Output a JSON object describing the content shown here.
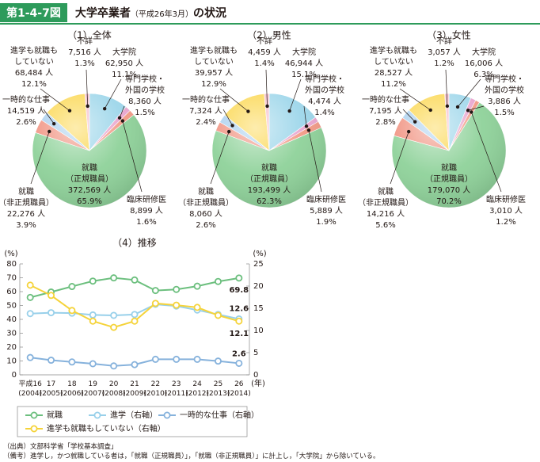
{
  "header": {
    "figure_no": "第1-4-7図",
    "title_main": "大学卒業者",
    "title_sub": "（平成26年3月）",
    "title_end": "の状況"
  },
  "notes": [
    "（出典）文部科学省「学校基本調査」",
    "（備考）進学し，かつ就職している者は，「就職（正規職員）」，「就職（非正規職員）」に計上し，「大学院」から除いている。"
  ],
  "chart_data": [
    {
      "type": "pie",
      "title": "（1）全体",
      "categories": [
        "大学院",
        "専門学校・\n外国の学校",
        "臨床研修医",
        "就職\n（正規職員）",
        "就職\n（非正規職員）",
        "一時的な仕事",
        "進学も就職も\nしていない",
        "不詳"
      ],
      "values": [
        11.1,
        1.5,
        1.6,
        65.9,
        3.9,
        2.6,
        12.1,
        1.3
      ],
      "value_labels": [
        "11.1%",
        "1.5%",
        "1.6%",
        "65.9%",
        "3.9%",
        "2.6%",
        "12.1%",
        "1.3%"
      ],
      "counts": [
        62950,
        8360,
        8899,
        372569,
        22276,
        14519,
        68484,
        7516
      ],
      "count_labels": [
        "62,950 人",
        "8,360 人",
        "8,899 人",
        "372,569 人",
        "22,276 人",
        "14,519 人",
        "68,484 人",
        "7,516 人"
      ],
      "colors": [
        "#9dd6ea",
        "#e9a6cf",
        "#f29a86",
        "#8fd29a",
        "#f0907e",
        "#a9cfee",
        "#fbd64c",
        "#f5bccb"
      ]
    },
    {
      "type": "pie",
      "title": "（2）男性",
      "categories": [
        "大学院",
        "専門学校・\n外国の学校",
        "臨床研修医",
        "就職\n（正規職員）",
        "就職\n（非正規職員）",
        "一時的な仕事",
        "進学も就職も\nしていない",
        "不詳"
      ],
      "values": [
        15.1,
        1.4,
        1.9,
        62.3,
        2.6,
        2.4,
        12.9,
        1.4
      ],
      "value_labels": [
        "15.1%",
        "1.4%",
        "1.9%",
        "62.3%",
        "2.6%",
        "2.4%",
        "12.9%",
        "1.4%"
      ],
      "counts": [
        46944,
        4474,
        5889,
        193499,
        8060,
        7324,
        39957,
        4459
      ],
      "count_labels": [
        "46,944 人",
        "4,474 人",
        "5,889 人",
        "193,499 人",
        "8,060 人",
        "7,324 人",
        "39,957 人",
        "4,459 人"
      ],
      "colors": [
        "#9dd6ea",
        "#e9a6cf",
        "#f29a86",
        "#8fd29a",
        "#f0907e",
        "#a9cfee",
        "#fbd64c",
        "#f5bccb"
      ]
    },
    {
      "type": "pie",
      "title": "（3）女性",
      "categories": [
        "大学院",
        "専門学校・\n外国の学校",
        "臨床研修医",
        "就職\n（正規職員）",
        "就職\n（非正規職員）",
        "一時的な仕事",
        "進学も就職も\nしていない",
        "不詳"
      ],
      "values": [
        6.3,
        1.5,
        1.2,
        70.2,
        5.6,
        2.8,
        11.2,
        1.2
      ],
      "value_labels": [
        "6.3%",
        "1.5%",
        "1.2%",
        "70.2%",
        "5.6%",
        "2.8%",
        "11.2%",
        "1.2%"
      ],
      "counts": [
        16006,
        3886,
        3010,
        179070,
        14216,
        7195,
        28527,
        3057
      ],
      "count_labels": [
        "16,006 人",
        "3,886 人",
        "3,010 人",
        "179,070 人",
        "14,216 人",
        "7,195 人",
        "28,527 人",
        "3,057 人"
      ],
      "colors": [
        "#9dd6ea",
        "#e9a6cf",
        "#f29a86",
        "#8fd29a",
        "#f0907e",
        "#a9cfee",
        "#fbd64c",
        "#f5bccb"
      ]
    },
    {
      "type": "line",
      "title": "（4）推移",
      "categories": [
        "平成16\n(2004)",
        "17\n(2005)",
        "18\n(2006)",
        "19\n(2007)",
        "20\n(2008)",
        "21\n(2009)",
        "22\n(2010)",
        "23\n(2011)",
        "24\n(2012)",
        "25\n(2013)",
        "26\n(2014)"
      ],
      "x_label": "(年)",
      "y_label": "(%)",
      "y2_label": "(%)",
      "ylim": [
        0,
        80
      ],
      "yticks": [
        0,
        10,
        20,
        30,
        40,
        50,
        60,
        70,
        80
      ],
      "y2lim": [
        0,
        25
      ],
      "y2ticks": [
        0,
        5,
        10,
        15,
        20,
        25
      ],
      "series": [
        {
          "name": "就職",
          "color": "#6cbf7e",
          "values": [
            55.8,
            59.7,
            63.7,
            67.6,
            69.9,
            68.4,
            60.8,
            61.6,
            63.9,
            67.3,
            69.8
          ]
        },
        {
          "name": "進学（右軸）",
          "color": "#98d0ea",
          "axis": "y2",
          "values": [
            13.8,
            14.0,
            13.9,
            13.5,
            13.4,
            13.6,
            15.9,
            15.5,
            14.6,
            13.6,
            12.6
          ]
        },
        {
          "name": "一時的な仕事（右軸）",
          "color": "#86b2dc",
          "axis": "y2",
          "values": [
            3.9,
            3.3,
            2.9,
            2.5,
            2.0,
            2.3,
            3.5,
            3.5,
            3.5,
            3.1,
            2.6
          ]
        },
        {
          "name": "進学も就職もしていない（右軸）",
          "color": "#f5d33a",
          "axis": "y2",
          "values": [
            20.2,
            17.9,
            14.5,
            12.1,
            10.7,
            12.1,
            16.1,
            15.7,
            15.2,
            13.4,
            12.1
          ]
        }
      ]
    }
  ]
}
